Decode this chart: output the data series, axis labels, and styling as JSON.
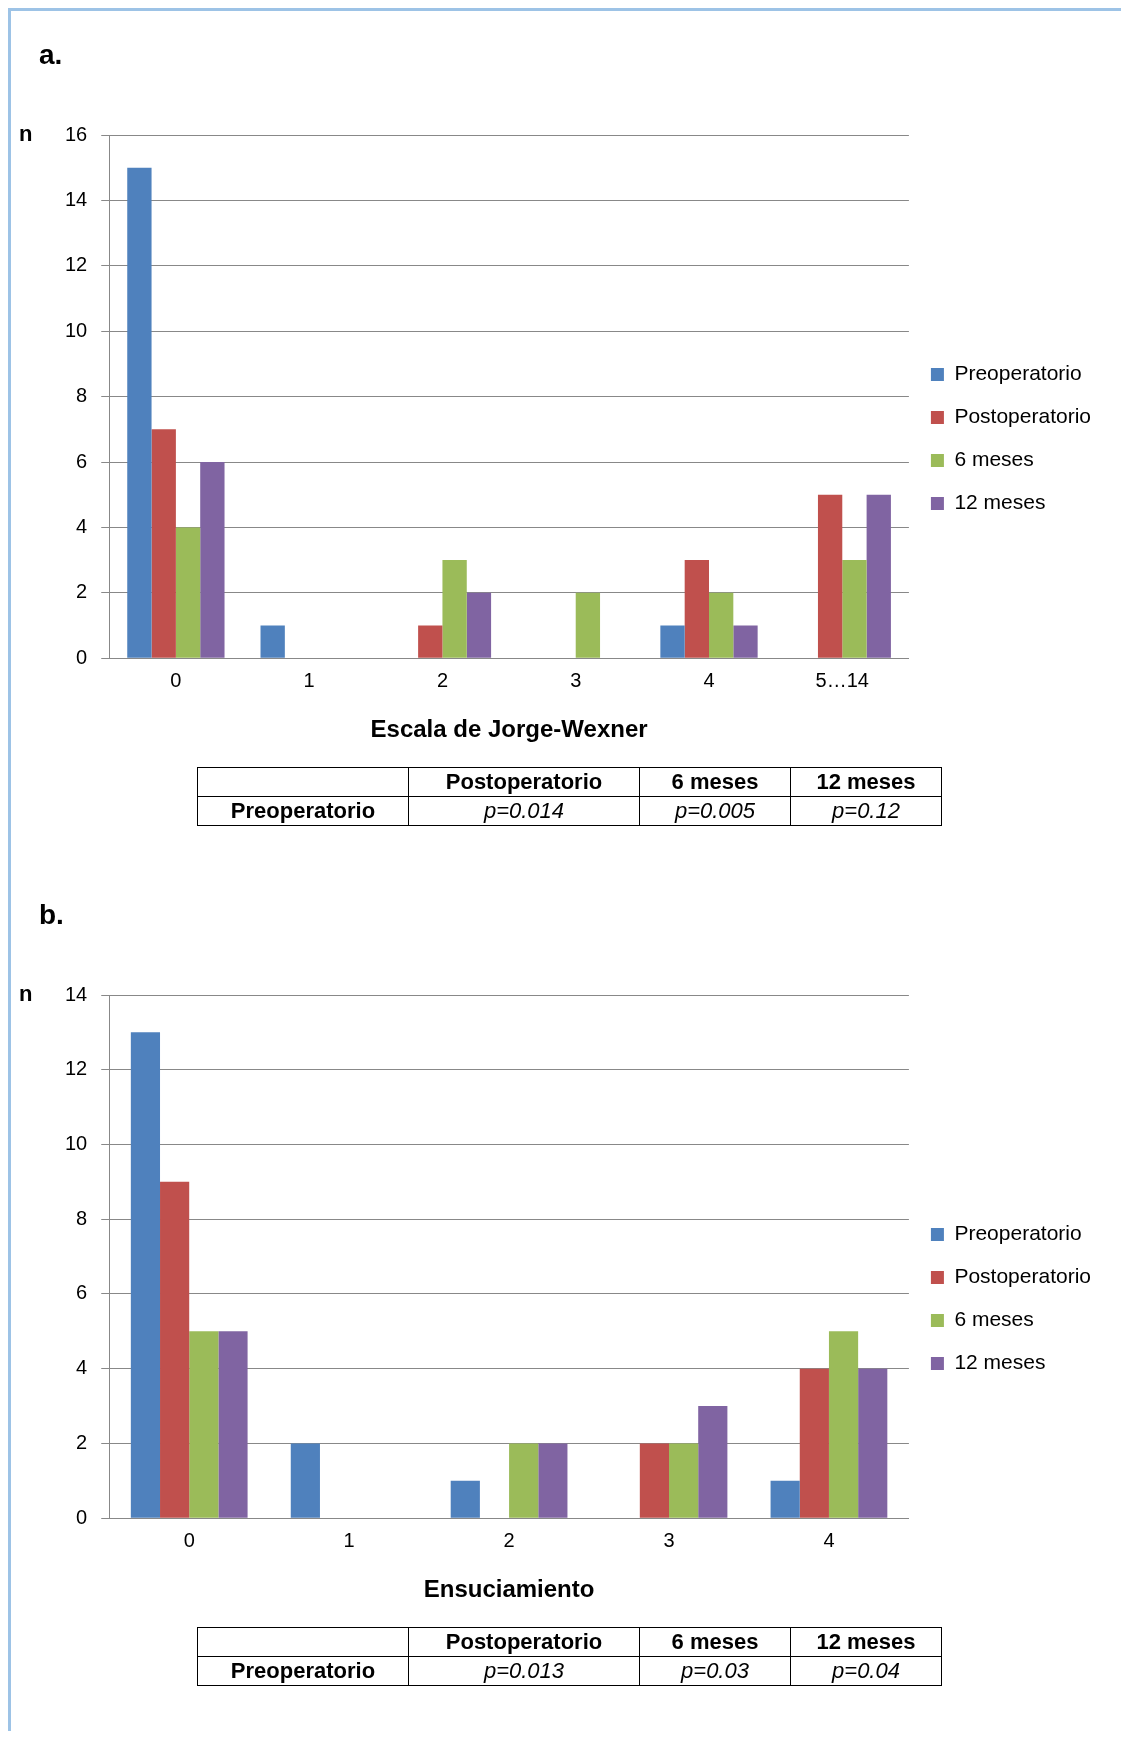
{
  "chart_data": [
    {
      "type": "bar",
      "title": "a.",
      "ylabel": "n",
      "xlabel": "Escala de Jorge-Wexner",
      "categories": [
        "0",
        "1",
        "2",
        "3",
        "4",
        "5…14"
      ],
      "series": [
        {
          "name": "Preoperatorio",
          "color": "#4f81bd",
          "values": [
            15,
            1,
            0,
            0,
            1,
            0
          ]
        },
        {
          "name": "Postoperatorio",
          "color": "#c0504d",
          "values": [
            7,
            0,
            1,
            0,
            3,
            5
          ]
        },
        {
          "name": "6 meses",
          "color": "#9bbb59",
          "values": [
            4,
            0,
            3,
            2,
            2,
            3
          ]
        },
        {
          "name": "12 meses",
          "color": "#8064a2",
          "values": [
            6,
            0,
            2,
            0,
            1,
            5
          ]
        }
      ],
      "ylim": [
        0,
        16
      ],
      "yticks": [
        0,
        2,
        4,
        6,
        8,
        10,
        12,
        14,
        16
      ],
      "grid": "y",
      "legend": "right",
      "annotations": [
        "Postoperatorio",
        "6 meses",
        "12 meses",
        "Preoperatorio",
        "p=0.014",
        "p=0.005",
        "p=0.12"
      ]
    },
    {
      "type": "bar",
      "title": "b.",
      "ylabel": "n",
      "xlabel": "Ensuciamiento",
      "categories": [
        "0",
        "1",
        "2",
        "3",
        "4"
      ],
      "series": [
        {
          "name": "Preoperatorio",
          "color": "#4f81bd",
          "values": [
            13,
            2,
            1,
            0,
            1
          ]
        },
        {
          "name": "Postoperatorio",
          "color": "#c0504d",
          "values": [
            9,
            0,
            0,
            2,
            4
          ]
        },
        {
          "name": "6 meses",
          "color": "#9bbb59",
          "values": [
            5,
            0,
            2,
            2,
            5
          ]
        },
        {
          "name": "12 meses",
          "color": "#8064a2",
          "values": [
            5,
            0,
            2,
            3,
            4
          ]
        }
      ],
      "ylim": [
        0,
        14
      ],
      "yticks": [
        0,
        2,
        4,
        6,
        8,
        10,
        12,
        14
      ],
      "grid": "y",
      "legend": "right",
      "annotations": [
        "Postoperatorio",
        "6 meses",
        "12 meses",
        "Preoperatorio",
        "p=0.013",
        "p=0.03",
        "p=0.04"
      ]
    }
  ]
}
